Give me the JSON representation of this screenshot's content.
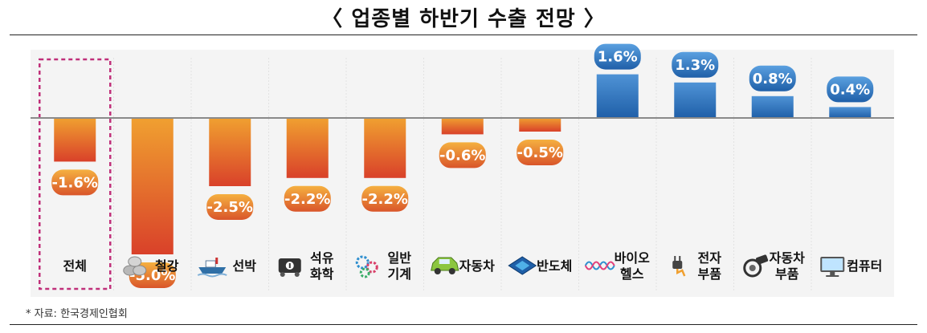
{
  "title": "〈 업종별 하반기 수출 전망 〉",
  "source": "* 자료: 한국경제인협회",
  "colors": {
    "negative_top": "#f0a030",
    "negative_bottom": "#d9412a",
    "positive_top": "#4f93d6",
    "positive_bottom": "#1f5fa8",
    "highlight_box": "#c0307a",
    "panel_bg": "#f4f4f4"
  },
  "chart_data": {
    "type": "bar",
    "title": "〈 업종별 하반기 수출 전망 〉",
    "xlabel": "",
    "ylabel": "",
    "unit": "%",
    "grid": false,
    "ylim": [
      -5.0,
      1.6
    ],
    "highlighted_category": "전체",
    "categories": [
      {
        "name": "전체",
        "lines": [
          "전체"
        ],
        "value": -1.6,
        "label": "-1.6%",
        "icon": "none"
      },
      {
        "name": "철강",
        "lines": [
          "철강"
        ],
        "value": -5.0,
        "label": "-5.0%",
        "icon": "steel-coil-icon"
      },
      {
        "name": "선박",
        "lines": [
          "선박"
        ],
        "value": -2.5,
        "label": "-2.5%",
        "icon": "ship-icon"
      },
      {
        "name": "석유화학",
        "lines": [
          "석유",
          "화학"
        ],
        "value": -2.2,
        "label": "-2.2%",
        "icon": "oil-tank-icon"
      },
      {
        "name": "일반기계",
        "lines": [
          "일반",
          "기계"
        ],
        "value": -2.2,
        "label": "-2.2%",
        "icon": "gears-icon"
      },
      {
        "name": "자동차",
        "lines": [
          "자동차"
        ],
        "value": -0.6,
        "label": "-0.6%",
        "icon": "car-icon"
      },
      {
        "name": "반도체",
        "lines": [
          "반도체"
        ],
        "value": -0.5,
        "label": "-0.5%",
        "icon": "chip-icon"
      },
      {
        "name": "바이오헬스",
        "lines": [
          "바이오",
          "헬스"
        ],
        "value": 1.6,
        "label": "1.6%",
        "icon": "dna-icon"
      },
      {
        "name": "전자부품",
        "lines": [
          "전자",
          "부품"
        ],
        "value": 1.3,
        "label": "1.3%",
        "icon": "plug-icon"
      },
      {
        "name": "자동차부품",
        "lines": [
          "자동차",
          "부품"
        ],
        "value": 0.8,
        "label": "0.8%",
        "icon": "auto-parts-icon"
      },
      {
        "name": "컴퓨터",
        "lines": [
          "컴퓨터"
        ],
        "value": 0.4,
        "label": "0.4%",
        "icon": "monitor-icon"
      }
    ]
  }
}
